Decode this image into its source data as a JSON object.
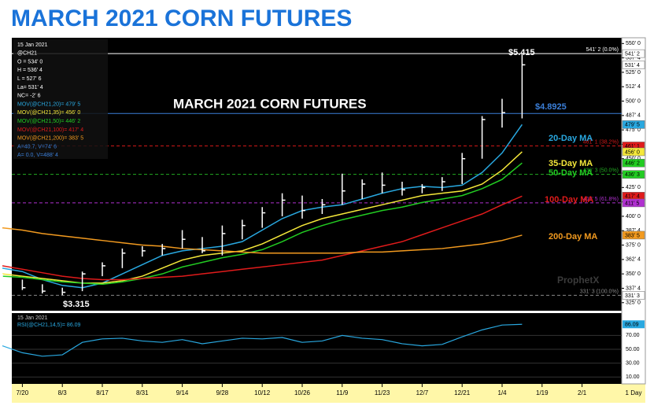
{
  "page_title": "MARCH 2021 CORN FUTURES",
  "chart_data": [
    {
      "type": "ohlc",
      "title": "MARCH 2021 CORN FUTURES",
      "interval": "1 Day",
      "categories": [
        null,
        "7/20",
        null,
        "8/3",
        null,
        "8/17",
        null,
        "8/31",
        null,
        "9/14",
        null,
        "9/28",
        null,
        "10/12",
        null,
        "10/26",
        null,
        "11/9",
        null,
        "11/23",
        null,
        "12/7",
        null,
        "12/21",
        null,
        "1/4",
        null,
        "1/19",
        null,
        "2/1",
        null
      ],
      "high": [
        350,
        345,
        341,
        338,
        352,
        360,
        372,
        374,
        376,
        388,
        382,
        392,
        397,
        408,
        420,
        418,
        415,
        437,
        432,
        438,
        430,
        428,
        434,
        455,
        487,
        502,
        541.5,
        null,
        null,
        null,
        null
      ],
      "low": [
        338,
        336,
        333,
        331.5,
        335,
        348,
        355,
        365,
        366,
        372,
        368,
        366,
        380,
        390,
        400,
        398,
        402,
        410,
        415,
        420,
        418,
        420,
        422,
        428,
        450,
        477,
        485,
        null,
        null,
        null,
        null
      ],
      "close": [
        340,
        338,
        335,
        334,
        350,
        357,
        368,
        370,
        372,
        380,
        370,
        385,
        392,
        403,
        414,
        405,
        410,
        422,
        428,
        427,
        423,
        425,
        430,
        450,
        484,
        490,
        531.5,
        null,
        null,
        null,
        null
      ],
      "bar_color": "#ffffff",
      "series": [
        {
          "name": "20-Day MA",
          "color": "#29a8e0",
          "values": [
            355,
            352,
            345,
            340,
            338,
            342,
            350,
            358,
            366,
            370,
            372,
            374,
            378,
            388,
            398,
            405,
            408,
            410,
            415,
            420,
            424,
            426,
            425,
            427,
            438,
            455,
            479.625,
            null,
            null,
            null,
            null
          ]
        },
        {
          "name": "35-Day MA",
          "color": "#f5e83a",
          "values": [
            350,
            348,
            346,
            344,
            342,
            342,
            344,
            348,
            355,
            362,
            366,
            368,
            370,
            376,
            384,
            392,
            398,
            402,
            406,
            410,
            414,
            418,
            420,
            422,
            428,
            440,
            456,
            null,
            null,
            null,
            null
          ]
        },
        {
          "name": "50-Day MA",
          "color": "#22cc22",
          "values": [
            348,
            347,
            345,
            343,
            342,
            341,
            343,
            346,
            350,
            356,
            360,
            364,
            367,
            371,
            378,
            386,
            392,
            397,
            401,
            405,
            408,
            412,
            415,
            418,
            424,
            432,
            446.25,
            null,
            null,
            null,
            null
          ]
        },
        {
          "name": "100-Day MA",
          "color": "#e01b1b",
          "values": [
            357,
            354,
            351,
            348,
            346,
            345,
            345,
            346,
            347,
            348,
            350,
            352,
            354,
            356,
            358,
            360,
            362,
            366,
            370,
            374,
            378,
            384,
            390,
            396,
            402,
            410,
            417.5,
            null,
            null,
            null,
            null
          ]
        },
        {
          "name": "200-Day MA",
          "color": "#f29a1f",
          "values": [
            390,
            388,
            385,
            383,
            381,
            379,
            377,
            375,
            374,
            372,
            371,
            370,
            369,
            368,
            368,
            368,
            368,
            368,
            369,
            369,
            370,
            371,
            372,
            374,
            376,
            379,
            383.625,
            null,
            null,
            null,
            null
          ]
        }
      ],
      "ylim": [
        318,
        555
      ],
      "yticks": [
        {
          "value": 550,
          "label": "550' 0"
        },
        {
          "value": 537.5,
          "label": "537' 4"
        },
        {
          "value": 525,
          "label": "525' 0"
        },
        {
          "value": 512.5,
          "label": "512' 4"
        },
        {
          "value": 500,
          "label": "500' 0"
        },
        {
          "value": 487.5,
          "label": "487' 4"
        },
        {
          "value": 475,
          "label": "475' 0"
        },
        {
          "value": 462.5,
          "label": "462' 4"
        },
        {
          "value": 450,
          "label": "450' 0"
        },
        {
          "value": 437.5,
          "label": "437' 4"
        },
        {
          "value": 425,
          "label": "425' 0"
        },
        {
          "value": 412.5,
          "label": "412' 4"
        },
        {
          "value": 400,
          "label": "400' 0"
        },
        {
          "value": 387.5,
          "label": "387' 4"
        },
        {
          "value": 375,
          "label": "375' 0"
        },
        {
          "value": 362.5,
          "label": "362' 4"
        },
        {
          "value": 350,
          "label": "350' 0"
        },
        {
          "value": 337.5,
          "label": "337' 4"
        },
        {
          "value": 325,
          "label": "325' 0"
        }
      ],
      "annotations": [
        "$5.415",
        "$3.315"
      ],
      "hlines": [
        {
          "value": 541.25,
          "label": "541' 2 (0.0%)",
          "color": "#ffffff",
          "dashed": false
        },
        {
          "value": 489.25,
          "label": "$4.8925",
          "color": "#3b7fd9",
          "dashed": false
        },
        {
          "value": 461.125,
          "label": "461' 1 (38.2%)",
          "color": "#d01818",
          "dashed": true
        },
        {
          "value": 436.375,
          "label": "436' 3 (50.0%)",
          "color": "#22aa22",
          "dashed": true
        },
        {
          "value": 411.625,
          "label": "411' 5 (61.8%)",
          "color": "#b030d0",
          "dashed": true
        },
        {
          "value": 331.375,
          "label": "331' 3 (100.0%)",
          "color": "#888888",
          "dashed": true
        }
      ],
      "tags": [
        {
          "value": 541.25,
          "label": "541' 2",
          "color": "#ffffff"
        },
        {
          "value": 531.5,
          "label": "531' 4",
          "color": "#ffffff"
        },
        {
          "value": 479.625,
          "label": "479' 5",
          "color": "#29a8e0"
        },
        {
          "value": 461.125,
          "label": "461' 1",
          "color": "#e01b1b"
        },
        {
          "value": 456,
          "label": "456' 0",
          "color": "#f5e83a"
        },
        {
          "value": 446.25,
          "label": "446' 2",
          "color": "#22cc22"
        },
        {
          "value": 436.375,
          "label": "436' 3",
          "color": "#22cc22"
        },
        {
          "value": 417.5,
          "label": "417' 4",
          "color": "#e01b1b"
        },
        {
          "value": 411.625,
          "label": "411' 5",
          "color": "#b030d0"
        },
        {
          "value": 383.625,
          "label": "383' 5",
          "color": "#f29a1f"
        },
        {
          "value": 331.375,
          "label": "331' 3",
          "color": "#ffffff"
        }
      ],
      "info": [
        {
          "text": "15 Jan 2021",
          "color": "#ffffff"
        },
        {
          "text": "@CH21",
          "color": "#ffffff"
        },
        {
          "text": "O = 534' 0",
          "color": "#ffffff"
        },
        {
          "text": "H = 536' 4",
          "color": "#ffffff"
        },
        {
          "text": "L = 527' 6",
          "color": "#ffffff"
        },
        {
          "text": "La= 531' 4",
          "color": "#ffffff"
        },
        {
          "text": "NC= -2' 6",
          "color": "#ffffff"
        },
        {
          "text": "MOV(@CH21,20)= 479' 5",
          "color": "#29a8e0"
        },
        {
          "text": "MOV(@CH21,35)= 456' 0",
          "color": "#f5e83a"
        },
        {
          "text": "MOV(@CH21,50)= 446' 2",
          "color": "#22cc22"
        },
        {
          "text": "MOV(@CH21,100)= 417' 4",
          "color": "#e01b1b"
        },
        {
          "text": "MOV(@CH21,200)= 383' 5",
          "color": "#f29a1f"
        },
        {
          "text": "A=40.7, V=74' 6",
          "color": "#3b7fd9"
        },
        {
          "text": "A= 0.0, V=488' 4",
          "color": "#3b7fd9"
        }
      ],
      "watermark": "ProphetX"
    },
    {
      "type": "line",
      "date": "15 Jan 2021",
      "series": [
        {
          "name": "RSI(@CH21,14,5)= 86.09",
          "color": "#29a8e0",
          "values": [
            55,
            45,
            40,
            42,
            60,
            65,
            66,
            62,
            60,
            64,
            58,
            62,
            66,
            65,
            67,
            60,
            62,
            70,
            66,
            64,
            58,
            55,
            57,
            68,
            78,
            85,
            86.09,
            null,
            null,
            null,
            null
          ]
        }
      ],
      "value_tag": "86.09",
      "ylim": [
        0,
        100
      ],
      "yticks": [
        {
          "value": 70,
          "label": "70.00"
        },
        {
          "value": 50,
          "label": "50.00"
        },
        {
          "value": 30,
          "label": "30.00"
        },
        {
          "value": 10,
          "label": "10.00"
        }
      ]
    }
  ]
}
